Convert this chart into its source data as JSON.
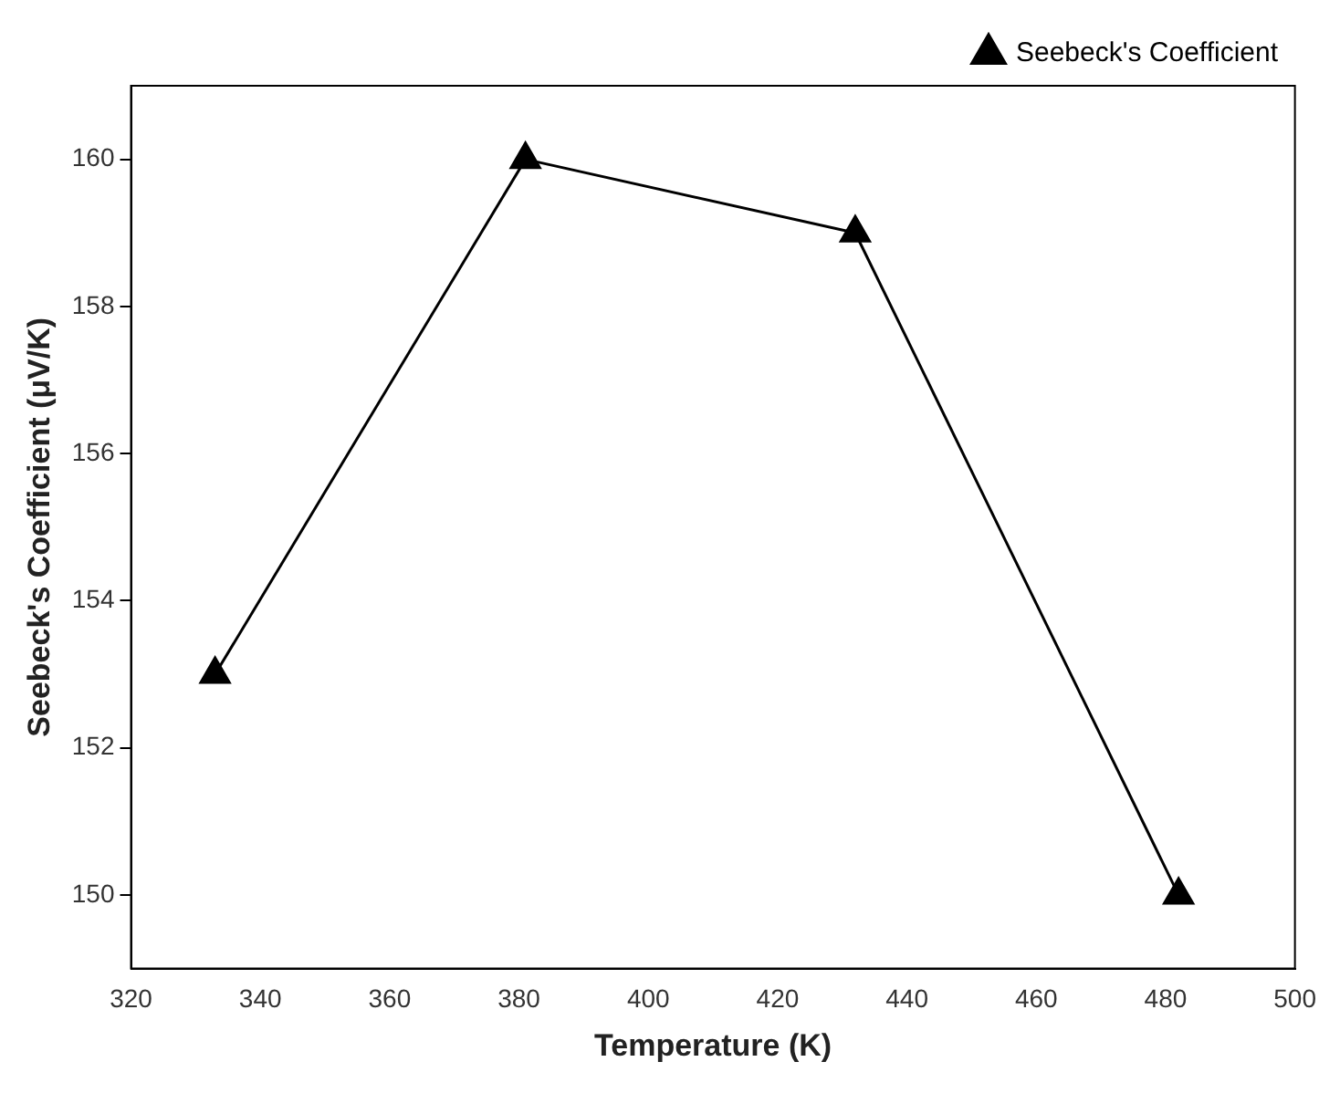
{
  "chart_data": {
    "type": "line",
    "xlabel": "Temperature (K)",
    "ylabel": "Seebeck's Coefficient (μV/K)",
    "x": [
      333,
      381,
      432,
      482
    ],
    "series": [
      {
        "name": "Seebeck's Coefficient",
        "color": "#000000",
        "values": [
          153,
          160,
          159,
          150
        ]
      }
    ],
    "xlim": [
      320,
      500
    ],
    "xticks": [
      320,
      340,
      360,
      380,
      400,
      420,
      440,
      460,
      480,
      500
    ],
    "ylim": [
      149,
      161
    ],
    "yticks": [
      150,
      152,
      154,
      156,
      158,
      160
    ],
    "grid": false,
    "legend": "top right",
    "marker": "triangle",
    "line_style": "solid"
  }
}
